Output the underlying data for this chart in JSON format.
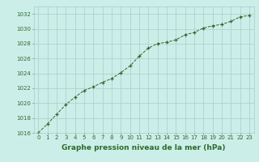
{
  "x": [
    0,
    1,
    2,
    3,
    4,
    5,
    6,
    7,
    8,
    9,
    10,
    11,
    12,
    13,
    14,
    15,
    16,
    17,
    18,
    19,
    20,
    21,
    22,
    23
  ],
  "y": [
    1016.0,
    1017.2,
    1018.5,
    1019.8,
    1020.8,
    1021.7,
    1022.2,
    1022.8,
    1023.3,
    1024.1,
    1025.0,
    1026.3,
    1027.4,
    1028.0,
    1028.2,
    1028.5,
    1029.2,
    1029.5,
    1030.1,
    1030.4,
    1030.6,
    1031.0,
    1031.6,
    1031.8
  ],
  "ylim": [
    1016,
    1033
  ],
  "xlim": [
    -0.5,
    23.5
  ],
  "yticks": [
    1016,
    1018,
    1020,
    1022,
    1024,
    1026,
    1028,
    1030,
    1032
  ],
  "xticks": [
    0,
    1,
    2,
    3,
    4,
    5,
    6,
    7,
    8,
    9,
    10,
    11,
    12,
    13,
    14,
    15,
    16,
    17,
    18,
    19,
    20,
    21,
    22,
    23
  ],
  "xlabel": "Graphe pression niveau de la mer (hPa)",
  "line_color": "#2d6a2d",
  "marker_color": "#2d6a2d",
  "bg_color": "#cceee8",
  "grid_color": "#aacccc",
  "xlabel_color": "#2d6a2d",
  "xlabel_fontsize": 6.5,
  "tick_fontsize": 5.0,
  "tick_color": "#2d6a2d"
}
